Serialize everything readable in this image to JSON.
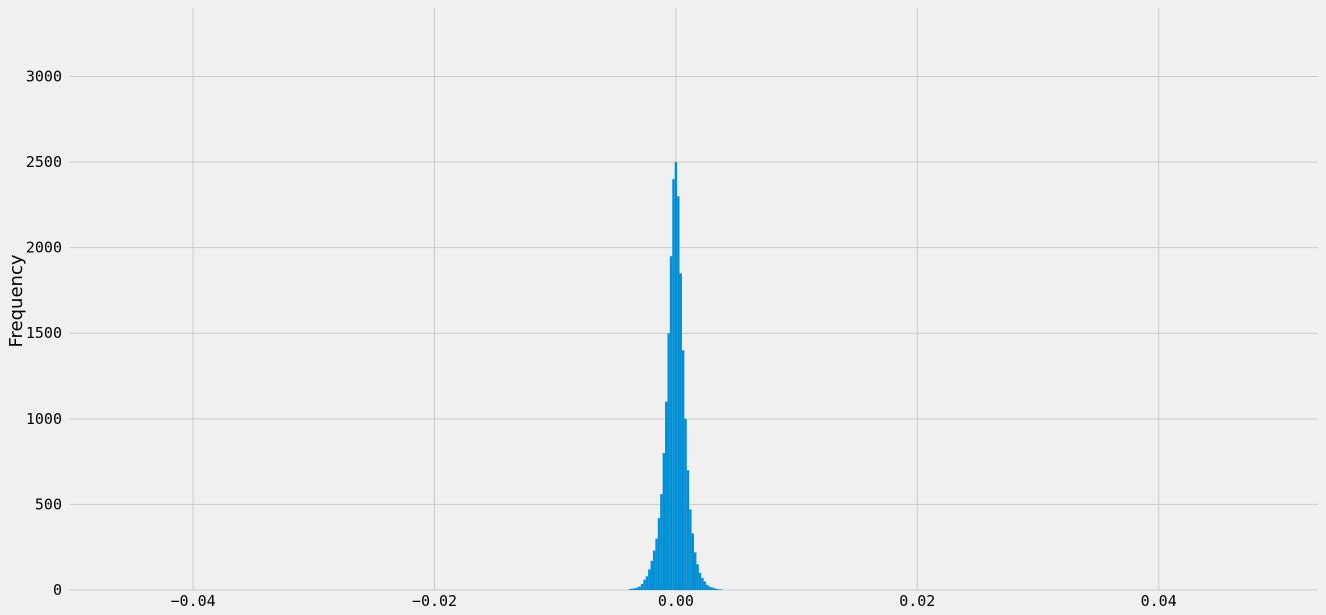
{
  "chart_data": {
    "type": "bar",
    "title": "",
    "xlabel": "",
    "ylabel": "Frequency",
    "xlim": [
      -0.0502,
      0.0532
    ],
    "ylim": [
      0,
      3400
    ],
    "grid": true,
    "colors": {
      "background": "#f0f0f0",
      "grid": "#cbcbcb",
      "bar": "#008fd5"
    },
    "x_ticks": [
      -0.04,
      -0.02,
      0.0,
      0.02,
      0.04
    ],
    "x_tick_labels": [
      "−0.04",
      "−0.02",
      "0.00",
      "0.02",
      "0.04"
    ],
    "y_ticks": [
      0,
      500,
      1000,
      1500,
      2000,
      2500,
      3000
    ],
    "y_tick_labels": [
      "0",
      "500",
      "1000",
      "1500",
      "2000",
      "2500",
      "3000"
    ],
    "bin_width": 0.0002,
    "bin_centers": [
      -0.0038,
      -0.0036,
      -0.0034,
      -0.0032,
      -0.003,
      -0.0028,
      -0.0026,
      -0.0024,
      -0.0022,
      -0.002,
      -0.0018,
      -0.0016,
      -0.0014,
      -0.0012,
      -0.001,
      -0.0008,
      -0.0006,
      -0.0004,
      -0.0002,
      0.0,
      0.0002,
      0.0004,
      0.0006,
      0.0008,
      0.001,
      0.0012,
      0.0014,
      0.0016,
      0.0018,
      0.002,
      0.0022,
      0.0024,
      0.0026,
      0.0028,
      0.003,
      0.0032,
      0.0034,
      0.0036,
      0.0038
    ],
    "values": [
      5,
      8,
      10,
      14,
      20,
      35,
      60,
      80,
      120,
      170,
      230,
      300,
      420,
      560,
      800,
      1100,
      1500,
      1950,
      2400,
      2500,
      2300,
      1850,
      1400,
      1000,
      700,
      470,
      330,
      220,
      150,
      100,
      70,
      50,
      30,
      20,
      15,
      10,
      6,
      4,
      3
    ]
  }
}
